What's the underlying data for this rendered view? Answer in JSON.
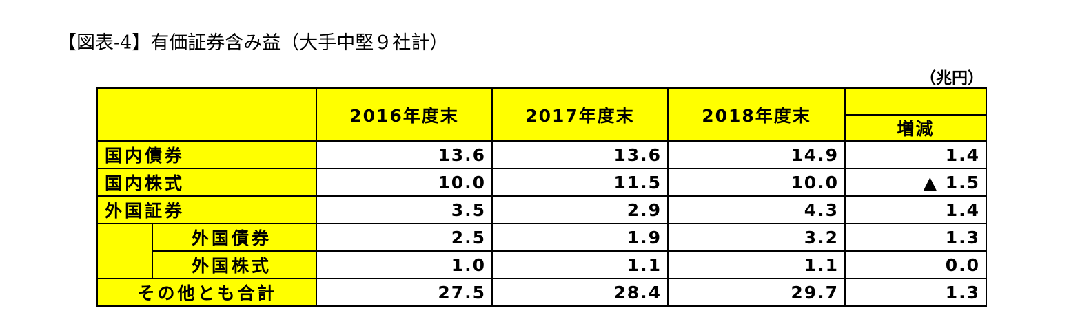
{
  "title": "【図表-4】有価証券含み益（大手中堅９社計）",
  "unit": "（兆円）",
  "table": {
    "header": [
      "2016年度末",
      "2017年度末",
      "2018年度末",
      "増減"
    ],
    "rows": [
      {
        "label": "国内債券",
        "level": 1,
        "cells": [
          "13.6",
          "13.6",
          "14.9",
          "1.4"
        ]
      },
      {
        "label": "国内株式",
        "level": 1,
        "cells": [
          "10.0",
          "11.5",
          "10.0",
          "▲ 1.5"
        ]
      },
      {
        "label": "外国証券",
        "level": 1,
        "cells": [
          "3.5",
          "2.9",
          "4.3",
          "1.4"
        ]
      },
      {
        "label": "外国債券",
        "level": 2,
        "cells": [
          "2.5",
          "1.9",
          "3.2",
          "1.3"
        ]
      },
      {
        "label": "外国株式",
        "level": 2,
        "cells": [
          "1.0",
          "1.1",
          "1.1",
          "0.0"
        ]
      },
      {
        "label": "その他とも合計",
        "level": 1,
        "cells": [
          "27.5",
          "28.4",
          "29.7",
          "1.3"
        ]
      }
    ]
  }
}
